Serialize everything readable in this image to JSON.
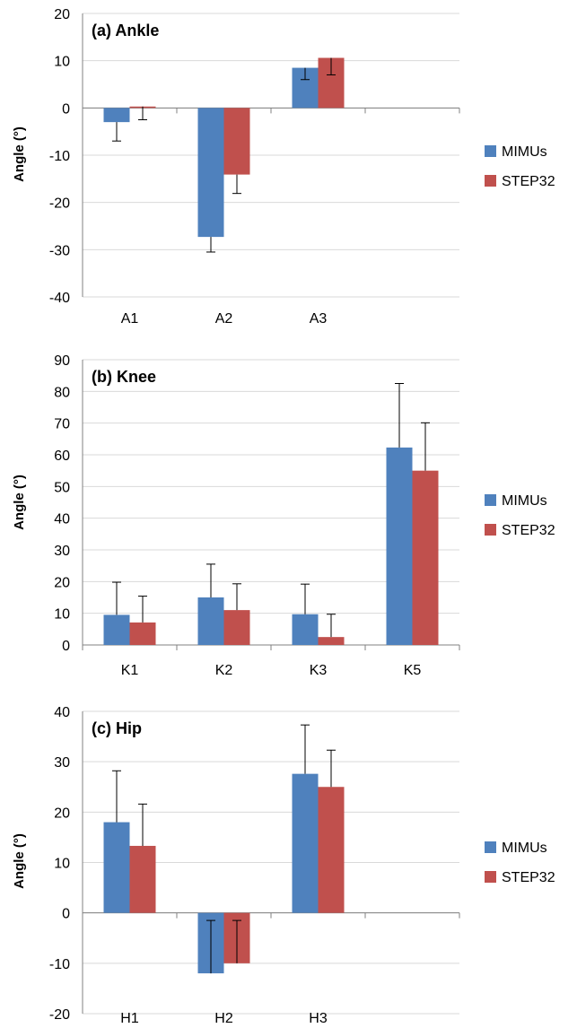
{
  "colors": {
    "mimus": "#4F81BD",
    "step32": "#C0504D",
    "grid": "#D9D9D9",
    "axis": "#808080",
    "error": "#000000"
  },
  "chart_data": [
    {
      "type": "bar",
      "title": "(a) Ankle",
      "xlabel": "",
      "ylabel": "Angle (°)",
      "ylim": [
        -40,
        20
      ],
      "yticks": [
        20,
        10,
        0,
        -10,
        -20,
        -30,
        -40
      ],
      "categories": [
        "A1",
        "A2",
        "A3",
        ""
      ],
      "grid": true,
      "legend_position": "right",
      "series": [
        {
          "name": "MIMUs",
          "values": [
            -3,
            -27.3,
            8.5,
            null
          ],
          "errors": [
            4,
            3.2,
            2.5,
            null
          ],
          "error_dir": [
            "down",
            "down",
            "down",
            null
          ]
        },
        {
          "name": "STEP32",
          "values": [
            0.3,
            -14.1,
            10.6,
            null
          ],
          "errors": [
            2.8,
            4,
            3.6,
            null
          ],
          "error_dir": [
            "down",
            "down",
            "down",
            null
          ]
        }
      ]
    },
    {
      "type": "bar",
      "title": "(b) Knee",
      "xlabel": "",
      "ylabel": "Angle (°)",
      "ylim": [
        0,
        90
      ],
      "yticks": [
        90,
        80,
        70,
        60,
        50,
        40,
        30,
        20,
        10,
        0
      ],
      "categories": [
        "K1",
        "K2",
        "K3",
        "K5"
      ],
      "grid": true,
      "legend_position": "right",
      "series": [
        {
          "name": "MIMUs",
          "values": [
            9.5,
            15,
            9.7,
            62.3
          ],
          "errors": [
            10.3,
            10.5,
            9.5,
            20.2
          ],
          "error_dir": [
            "up",
            "up",
            "up",
            "up"
          ]
        },
        {
          "name": "STEP32",
          "values": [
            7.1,
            11,
            2.5,
            55
          ],
          "errors": [
            8.3,
            8.3,
            7.2,
            15.1
          ],
          "error_dir": [
            "up",
            "up",
            "up",
            "up"
          ]
        }
      ]
    },
    {
      "type": "bar",
      "title": "(c) Hip",
      "xlabel": "",
      "ylabel": "Angle (°)",
      "ylim": [
        -20,
        40
      ],
      "yticks": [
        40,
        30,
        20,
        10,
        0,
        -10,
        -20
      ],
      "categories": [
        "H1",
        "H2",
        "H3",
        ""
      ],
      "grid": true,
      "legend_position": "right",
      "series": [
        {
          "name": "MIMUs",
          "values": [
            18,
            -12,
            27.6,
            null
          ],
          "errors": [
            10.2,
            10.5,
            9.7,
            null
          ],
          "error_dir": [
            "up",
            "up",
            "up",
            null
          ]
        },
        {
          "name": "STEP32",
          "values": [
            13.3,
            -10,
            25,
            null
          ],
          "errors": [
            8.3,
            8.5,
            7.3,
            null
          ],
          "error_dir": [
            "up",
            "up",
            "up",
            null
          ]
        }
      ]
    }
  ]
}
